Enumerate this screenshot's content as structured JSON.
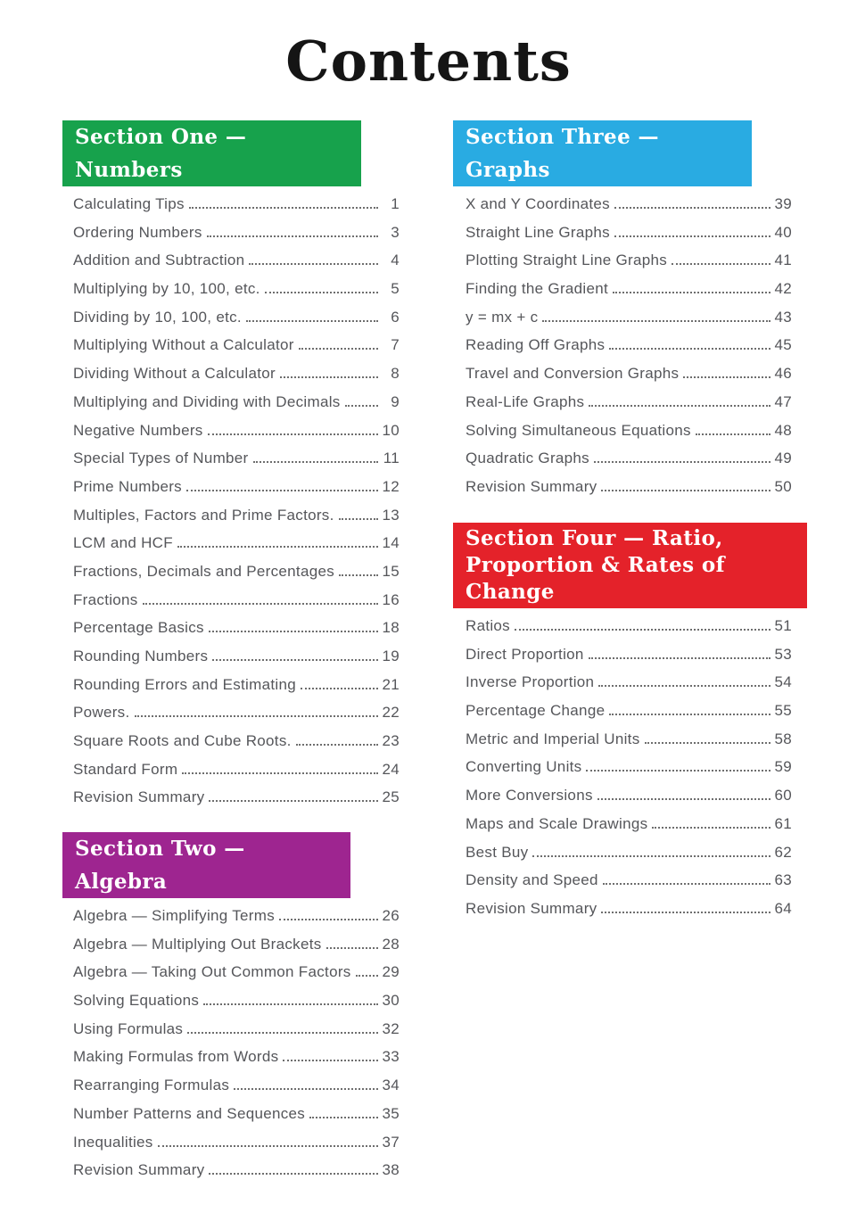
{
  "page_title": "Contents",
  "colors": {
    "section_one_green": "#17a24c",
    "section_two_purple": "#9e2590",
    "section_three_blue": "#29abe2",
    "section_four_red": "#e4222a",
    "entry_text_grey": "#55565a"
  },
  "sections": [
    {
      "title": "Section One — Numbers",
      "color": "#17a24c",
      "entries": [
        {
          "label": "Calculating Tips",
          "page": "1"
        },
        {
          "label": "Ordering Numbers",
          "page": "3"
        },
        {
          "label": "Addition and Subtraction",
          "page": "4"
        },
        {
          "label": "Multiplying by 10, 100, etc.",
          "page": "5"
        },
        {
          "label": "Dividing by 10, 100, etc.",
          "page": "6"
        },
        {
          "label": "Multiplying Without a Calculator",
          "page": "7"
        },
        {
          "label": "Dividing Without a Calculator",
          "page": "8"
        },
        {
          "label": "Multiplying and Dividing with Decimals",
          "page": "9"
        },
        {
          "label": "Negative Numbers",
          "page": "10"
        },
        {
          "label": "Special Types of Number",
          "page": "11"
        },
        {
          "label": "Prime Numbers",
          "page": "12"
        },
        {
          "label": "Multiples, Factors and Prime Factors.",
          "page": "13"
        },
        {
          "label": "LCM and HCF",
          "page": "14"
        },
        {
          "label": "Fractions, Decimals and Percentages",
          "page": "15"
        },
        {
          "label": "Fractions",
          "page": "16"
        },
        {
          "label": "Percentage Basics",
          "page": "18"
        },
        {
          "label": "Rounding Numbers",
          "page": "19"
        },
        {
          "label": "Rounding Errors and Estimating",
          "page": "21"
        },
        {
          "label": "Powers.",
          "page": "22"
        },
        {
          "label": "Square Roots and Cube Roots.",
          "page": "23"
        },
        {
          "label": "Standard Form",
          "page": "24"
        },
        {
          "label": "Revision Summary",
          "page": "25"
        }
      ]
    },
    {
      "title": "Section Two — Algebra",
      "color": "#9e2590",
      "entries": [
        {
          "label": "Algebra — Simplifying Terms",
          "page": "26"
        },
        {
          "label": "Algebra — Multiplying Out Brackets",
          "page": "28"
        },
        {
          "label": "Algebra — Taking Out Common Factors",
          "page": "29"
        },
        {
          "label": "Solving Equations",
          "page": "30"
        },
        {
          "label": "Using Formulas",
          "page": "32"
        },
        {
          "label": "Making Formulas from Words",
          "page": "33"
        },
        {
          "label": "Rearranging Formulas",
          "page": "34"
        },
        {
          "label": "Number Patterns and Sequences",
          "page": "35"
        },
        {
          "label": "Inequalities",
          "page": "37"
        },
        {
          "label": "Revision Summary",
          "page": "38"
        }
      ]
    },
    {
      "title": "Section Three — Graphs",
      "color": "#29abe2",
      "entries": [
        {
          "label": "X and Y Coordinates",
          "page": "39"
        },
        {
          "label": "Straight Line Graphs",
          "page": "40"
        },
        {
          "label": "Plotting Straight Line Graphs",
          "page": "41"
        },
        {
          "label": "Finding the Gradient",
          "page": "42"
        },
        {
          "label": "y = mx + c",
          "page": "43"
        },
        {
          "label": "Reading Off Graphs",
          "page": "45"
        },
        {
          "label": "Travel and Conversion Graphs",
          "page": "46"
        },
        {
          "label": "Real-Life Graphs",
          "page": "47"
        },
        {
          "label": "Solving Simultaneous Equations",
          "page": "48"
        },
        {
          "label": "Quadratic Graphs",
          "page": "49"
        },
        {
          "label": "Revision Summary",
          "page": "50"
        }
      ]
    },
    {
      "title": "Section Four — Ratio,\nProportion & Rates of Change",
      "color": "#e4222a",
      "entries": [
        {
          "label": "Ratios",
          "page": "51"
        },
        {
          "label": "Direct Proportion",
          "page": "53"
        },
        {
          "label": "Inverse Proportion",
          "page": "54"
        },
        {
          "label": "Percentage Change",
          "page": "55"
        },
        {
          "label": "Metric and Imperial Units",
          "page": "58"
        },
        {
          "label": "Converting Units",
          "page": "59"
        },
        {
          "label": "More Conversions",
          "page": "60"
        },
        {
          "label": "Maps and Scale Drawings",
          "page": "61"
        },
        {
          "label": "Best Buy",
          "page": "62"
        },
        {
          "label": "Density and Speed",
          "page": "63"
        },
        {
          "label": "Revision Summary",
          "page": "64"
        }
      ]
    }
  ]
}
